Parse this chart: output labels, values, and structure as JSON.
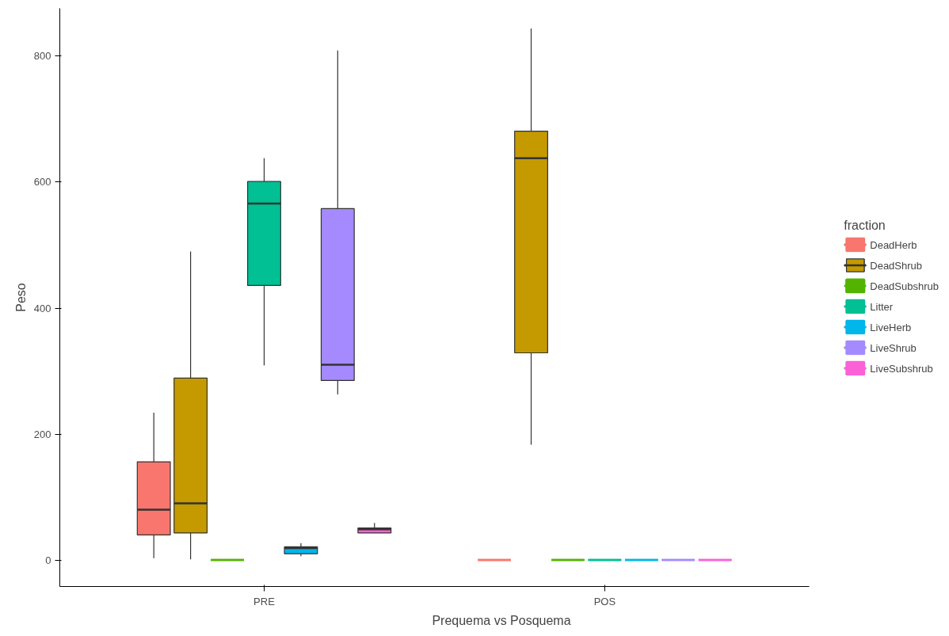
{
  "chart_data": {
    "type": "box",
    "xlabel": "Prequema vs Posquema",
    "ylabel": "Peso",
    "legend_title": "fraction",
    "legend": "right",
    "grid": false,
    "categories": [
      "PRE",
      "POS"
    ],
    "ylim": [
      -42,
      876
    ],
    "yticks": [
      0,
      200,
      400,
      600,
      800
    ],
    "series": [
      {
        "name": "DeadHerb",
        "color": "#f8766d",
        "boxes": [
          {
            "low": 3,
            "q1": 40,
            "median": 80,
            "q3": 156,
            "high": 234
          },
          {
            "low": 0,
            "q1": 0,
            "median": 0,
            "q3": 0,
            "high": 0
          }
        ]
      },
      {
        "name": "DeadShrub",
        "color": "#c49a00",
        "boxes": [
          {
            "low": 1,
            "q1": 43,
            "median": 90,
            "q3": 289,
            "high": 490
          },
          {
            "low": 183,
            "q1": 329,
            "median": 638,
            "q3": 681,
            "high": 844
          }
        ]
      },
      {
        "name": "DeadSubshrub",
        "color": "#53b400",
        "boxes": [
          {
            "low": 0,
            "q1": 0,
            "median": 0,
            "q3": 0,
            "high": 0
          },
          {
            "low": 0,
            "q1": 0,
            "median": 0,
            "q3": 0,
            "high": 0
          }
        ]
      },
      {
        "name": "Litter",
        "color": "#00c094",
        "boxes": [
          {
            "low": 309,
            "q1": 436,
            "median": 566,
            "q3": 601,
            "high": 638
          },
          {
            "low": 0,
            "q1": 0,
            "median": 0,
            "q3": 0,
            "high": 0
          }
        ]
      },
      {
        "name": "LiveHerb",
        "color": "#00b6eb",
        "boxes": [
          {
            "low": 6,
            "q1": 10,
            "median": 19,
            "q3": 21,
            "high": 27
          },
          {
            "low": 0,
            "q1": 0,
            "median": 0,
            "q3": 0,
            "high": 0
          }
        ]
      },
      {
        "name": "LiveShrub",
        "color": "#a58aff",
        "boxes": [
          {
            "low": 263,
            "q1": 285,
            "median": 310,
            "q3": 558,
            "high": 809
          },
          {
            "low": 0,
            "q1": 0,
            "median": 0,
            "q3": 0,
            "high": 0
          }
        ]
      },
      {
        "name": "LiveSubshrub",
        "color": "#fb61d7",
        "boxes": [
          {
            "low": 43,
            "q1": 43,
            "median": 49,
            "q3": 51,
            "high": 59
          },
          {
            "low": 0,
            "q1": 0,
            "median": 0,
            "q3": 0,
            "high": 0
          }
        ]
      }
    ]
  }
}
